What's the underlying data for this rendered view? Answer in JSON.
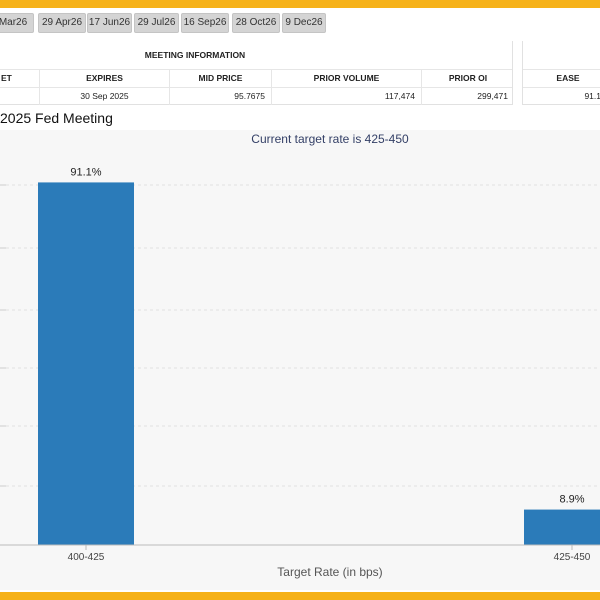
{
  "date_tabs": [
    "Mar26",
    "29 Apr26",
    "17 Jun26",
    "29 Jul26",
    "16 Sep26",
    "28 Oct26",
    "9 Dec26"
  ],
  "meeting_info": {
    "title": "MEETING INFORMATION",
    "columns": [
      "ET",
      "EXPIRES",
      "MID PRICE",
      "PRIOR VOLUME",
      "PRIOR OI"
    ],
    "row": [
      "",
      "30 Sep 2025",
      "95.7675",
      "117,474",
      "299,471"
    ]
  },
  "probabilities": {
    "columns": [
      "EASE"
    ],
    "row": [
      "91.1"
    ]
  },
  "chart_title": "2025 Fed Meeting",
  "chart_data": {
    "type": "bar",
    "title": "2025 Fed Meeting",
    "subtitle": "Current target rate is 425-450",
    "xlabel": "Target Rate (in bps)",
    "ylabel": "",
    "categories": [
      "400-425",
      "425-450"
    ],
    "values": [
      91.1,
      8.9
    ],
    "data_labels": [
      "91.1%",
      "8.9%"
    ],
    "ylim": [
      0,
      100
    ],
    "grid": true,
    "bar_color": "#2b7bb9"
  },
  "colors": {
    "accent_border": "#f6b21a",
    "bar": "#2b7bb9",
    "tab_bg": "#d4d4d4",
    "panel_bg": "#f7f7f7"
  }
}
